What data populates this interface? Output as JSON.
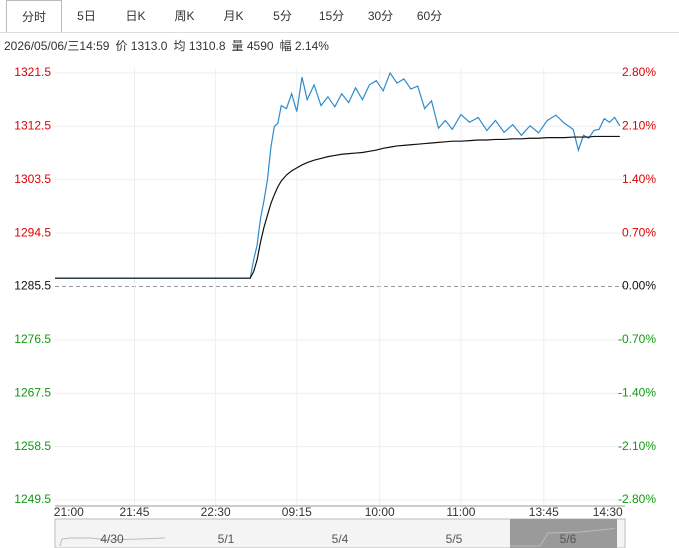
{
  "tabs": [
    "分时",
    "5日",
    "日K",
    "周K",
    "月K",
    "5分",
    "15分",
    "30分",
    "60分"
  ],
  "info": [
    "2026/05/06/三14:59",
    "价 1313.0",
    "均 1310.8",
    "量 4590",
    "幅 2.14%"
  ],
  "chart_data": {
    "type": "line",
    "x": [
      0,
      20,
      40,
      60,
      80,
      100,
      113,
      115,
      117,
      119,
      121,
      123,
      125,
      127,
      129,
      131,
      134,
      137,
      140,
      143,
      146,
      150,
      154,
      158,
      162,
      166,
      170,
      174,
      178,
      182,
      186,
      190,
      194,
      198,
      202,
      206,
      210,
      214,
      218,
      222,
      226,
      230,
      235,
      240,
      245,
      250,
      255,
      260,
      265,
      270,
      275,
      280,
      285,
      290,
      295,
      300,
      303,
      306,
      309,
      312,
      315,
      318,
      321,
      324,
      327
    ],
    "series": [
      {
        "color": "#2f8ccc",
        "values": [
          1286.9,
          1286.9,
          1286.9,
          1286.9,
          1286.9,
          1286.9,
          1286.9,
          1290,
          1292.5,
          1297,
          1300,
          1303.5,
          1309,
          1312.5,
          1313,
          1316,
          1315.5,
          1318,
          1315,
          1320.8,
          1317,
          1319.5,
          1316,
          1317.5,
          1315.8,
          1318,
          1316.5,
          1319,
          1317,
          1319.5,
          1320.2,
          1318.5,
          1321.5,
          1319.8,
          1320.5,
          1318.8,
          1319.3,
          1315.5,
          1316.8,
          1312.2,
          1313.5,
          1312,
          1314.5,
          1313.2,
          1314,
          1311.8,
          1313.5,
          1311.5,
          1312.8,
          1311,
          1312.6,
          1311.4,
          1313.5,
          1314.4,
          1313,
          1312,
          1308.5,
          1311,
          1310.5,
          1311.8,
          1312,
          1313.8,
          1313.2,
          1314,
          1312.6
        ]
      },
      {
        "color": "#111111",
        "values": [
          1286.9,
          1286.9,
          1286.9,
          1286.9,
          1286.9,
          1286.9,
          1286.9,
          1288,
          1290,
          1293,
          1295.5,
          1297.5,
          1299.5,
          1301,
          1302.3,
          1303.3,
          1304.3,
          1305,
          1305.5,
          1306,
          1306.4,
          1306.8,
          1307.1,
          1307.4,
          1307.6,
          1307.8,
          1307.9,
          1308,
          1308.1,
          1308.3,
          1308.5,
          1308.8,
          1309,
          1309.2,
          1309.3,
          1309.4,
          1309.5,
          1309.6,
          1309.7,
          1309.8,
          1309.9,
          1310,
          1310,
          1310.1,
          1310.2,
          1310.2,
          1310.3,
          1310.3,
          1310.4,
          1310.4,
          1310.5,
          1310.5,
          1310.6,
          1310.6,
          1310.6,
          1310.7,
          1310.7,
          1310.7,
          1310.7,
          1310.8,
          1310.8,
          1310.8,
          1310.8,
          1310.8,
          1310.8
        ]
      }
    ],
    "xlim": [
      0,
      330
    ],
    "xticks": [
      {
        "value": 8,
        "label": "21:00"
      },
      {
        "value": 46,
        "label": "21:45"
      },
      {
        "value": 93,
        "label": "22:30"
      },
      {
        "value": 140,
        "label": "09:15"
      },
      {
        "value": 188,
        "label": "10:00"
      },
      {
        "value": 235,
        "label": "11:00"
      },
      {
        "value": 283,
        "label": "13:45"
      },
      {
        "value": 320,
        "label": "14:30"
      }
    ],
    "ylim": [
      1249.5,
      1321.5
    ],
    "yticks": [
      1321.5,
      1312.5,
      1303.5,
      1294.5,
      1285.5,
      1276.5,
      1267.5,
      1258.5,
      1249.5
    ],
    "y2lim": [
      -2.8,
      2.8
    ],
    "y2ticks": [
      {
        "value": 2.8,
        "label": "2.80%"
      },
      {
        "value": 2.1,
        "label": "2.10%"
      },
      {
        "value": 1.4,
        "label": "1.40%"
      },
      {
        "value": 0.7,
        "label": "0.70%"
      },
      {
        "value": 0,
        "label": "0.00%"
      },
      {
        "value": -0.7,
        "label": "-0.70%"
      },
      {
        "value": -1.4,
        "label": "-1.40%"
      },
      {
        "value": -2.1,
        "label": "-2.10%"
      },
      {
        "value": -2.8,
        "label": "-2.80%"
      }
    ],
    "up_color": "#e00000",
    "down_color": "#119911",
    "grid": true
  },
  "navigator": [
    "4/30",
    "5/1",
    "5/4",
    "5/5",
    "5/6"
  ]
}
